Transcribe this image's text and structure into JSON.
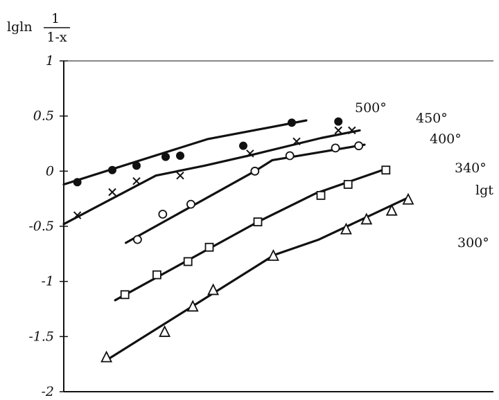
{
  "chart_data": {
    "type": "line",
    "title": "",
    "xlabel": "lgt",
    "ylabel": {
      "prefix": "lgln",
      "numerator": "1",
      "denominator": "1-x"
    },
    "ylim": [
      -2,
      1
    ],
    "yticks": [
      1,
      0.5,
      0,
      -0.5,
      -1,
      -1.5,
      -2
    ],
    "ytick_labels": [
      "1",
      "0.5",
      "0",
      "-0.5",
      "-1",
      "-1.5",
      "-2"
    ],
    "grid": false,
    "series": [
      {
        "name": "500°",
        "marker": "filled-circle",
        "line": [
          [
            0,
            -0.12
          ],
          [
            1.48,
            0.29
          ],
          [
            2.5,
            0.46
          ]
        ],
        "points": [
          [
            0.14,
            -0.1
          ],
          [
            0.5,
            0.01
          ],
          [
            0.75,
            0.05
          ],
          [
            1.05,
            0.13
          ],
          [
            1.2,
            0.14
          ],
          [
            1.85,
            0.23
          ],
          [
            2.35,
            0.44
          ],
          [
            2.83,
            0.45
          ]
        ]
      },
      {
        "name": "450°",
        "marker": "cross",
        "line": [
          [
            0,
            -0.48
          ],
          [
            0.95,
            -0.04
          ],
          [
            1.45,
            0.05
          ],
          [
            1.95,
            0.15
          ],
          [
            2.65,
            0.3
          ],
          [
            3.05,
            0.37
          ]
        ],
        "points": [
          [
            0.14,
            -0.4
          ],
          [
            0.5,
            -0.19
          ],
          [
            0.75,
            -0.09
          ],
          [
            1.2,
            -0.04
          ],
          [
            1.92,
            0.16
          ],
          [
            2.4,
            0.27
          ],
          [
            2.83,
            0.37
          ],
          [
            2.97,
            0.37
          ]
        ]
      },
      {
        "name": "400°",
        "marker": "circle",
        "line": [
          [
            0.64,
            -0.65
          ],
          [
            1.97,
            0
          ],
          [
            2.15,
            0.1
          ],
          [
            3.1,
            0.24
          ]
        ],
        "points": [
          [
            0.76,
            -0.62
          ],
          [
            1.02,
            -0.39
          ],
          [
            1.31,
            -0.3
          ],
          [
            1.97,
            0.0
          ],
          [
            2.33,
            0.14
          ],
          [
            2.8,
            0.21
          ],
          [
            3.04,
            0.23
          ]
        ]
      },
      {
        "name": "340°",
        "marker": "square",
        "line": [
          [
            0.53,
            -1.17
          ],
          [
            2.0,
            -0.46
          ],
          [
            2.6,
            -0.2
          ],
          [
            3.32,
            0.02
          ]
        ],
        "points": [
          [
            0.63,
            -1.12
          ],
          [
            0.96,
            -0.94
          ],
          [
            1.28,
            -0.82
          ],
          [
            1.5,
            -0.69
          ],
          [
            2.0,
            -0.46
          ],
          [
            2.65,
            -0.22
          ],
          [
            2.93,
            -0.12
          ],
          [
            3.32,
            0.01
          ]
        ]
      },
      {
        "name": "300°",
        "marker": "triangle",
        "line": [
          [
            0.43,
            -1.72
          ],
          [
            2.17,
            -0.76
          ],
          [
            2.63,
            -0.62
          ],
          [
            3.55,
            -0.24
          ]
        ],
        "points": [
          [
            0.44,
            -1.69
          ],
          [
            1.04,
            -1.46
          ],
          [
            1.33,
            -1.23
          ],
          [
            1.54,
            -1.08
          ],
          [
            2.16,
            -0.77
          ],
          [
            2.91,
            -0.53
          ],
          [
            3.12,
            -0.44
          ],
          [
            3.38,
            -0.36
          ],
          [
            3.55,
            -0.26
          ]
        ]
      }
    ]
  }
}
